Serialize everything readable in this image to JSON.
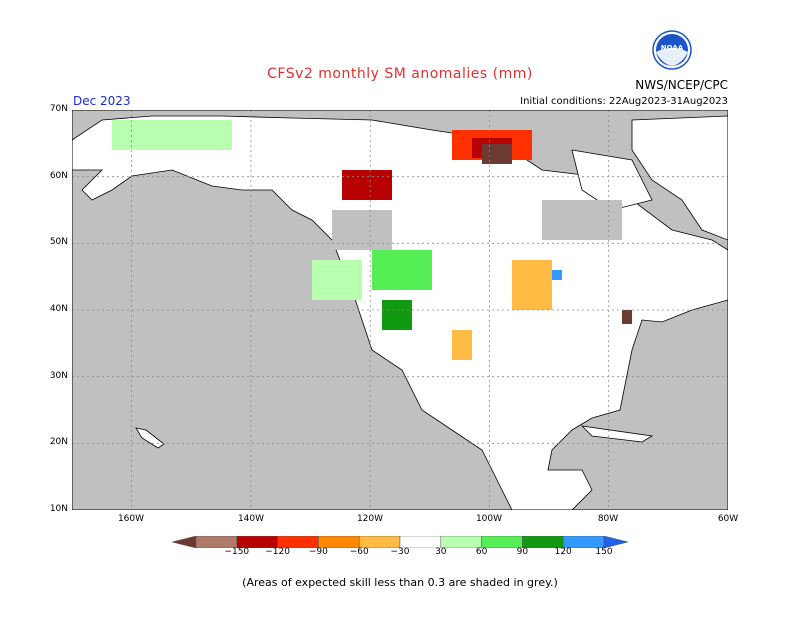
{
  "title": "CFSv2 monthly SM anomalies (mm)",
  "org": "NWS/NCEP/CPC",
  "month": "Dec 2023",
  "initial_conditions": "Initial conditions: 22Aug2023-31Aug2023",
  "logo_text": "NOAA",
  "note": "(Areas of expected skill less than 0.3 are shaded in grey.)",
  "map": {
    "lon_range": [
      -170,
      -60
    ],
    "lat_range": [
      10,
      70
    ],
    "lat_labels": [
      "70N",
      "60N",
      "50N",
      "40N",
      "30N",
      "20N",
      "10N"
    ],
    "lon_labels": [
      "160W",
      "140W",
      "120W",
      "100W",
      "80W",
      "60W"
    ],
    "colors": {
      "ocean": "#c0c0c0",
      "land": "#ffffff",
      "coast": "#000000",
      "grid": "#8a8a8a"
    }
  },
  "colorbar": {
    "labels": [
      "−150",
      "−120",
      "−90",
      "−60",
      "−30",
      "30",
      "60",
      "90",
      "120",
      "150"
    ],
    "colors": [
      "#6b3a32",
      "#b07a6a",
      "#b80000",
      "#ff3000",
      "#ff8800",
      "#ffbb44",
      "#ffffff",
      "#b8ffb0",
      "#55ee55",
      "#119911",
      "#3399ff",
      "#2060ee"
    ]
  }
}
